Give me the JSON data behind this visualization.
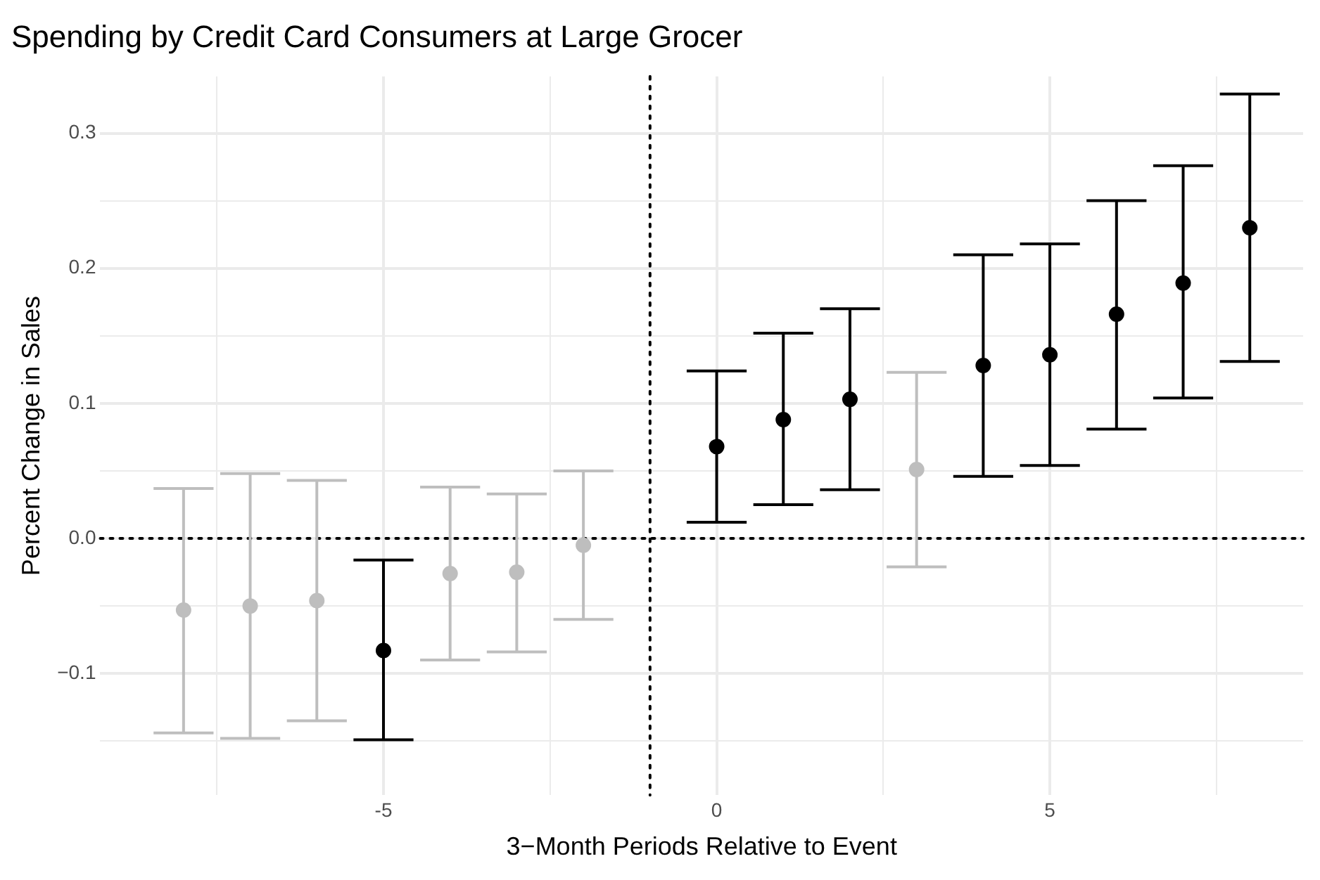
{
  "chart_data": {
    "type": "scatter",
    "title": "Spending by Credit Card Consumers at Large Grocer",
    "xlabel": "3−Month Periods Relative to Event",
    "ylabel": "Percent Change in Sales",
    "x": [
      -8,
      -7,
      -6,
      -5,
      -4,
      -3,
      -2,
      0,
      1,
      2,
      3,
      4,
      5,
      6,
      7,
      8
    ],
    "values": [
      -0.053,
      -0.05,
      -0.046,
      -0.083,
      -0.026,
      -0.025,
      -0.005,
      0.068,
      0.088,
      0.103,
      0.051,
      0.128,
      0.136,
      0.166,
      0.189,
      0.23
    ],
    "errors": [
      [
        -0.144,
        0.037
      ],
      [
        -0.148,
        0.048
      ],
      [
        -0.135,
        0.043
      ],
      [
        -0.149,
        -0.016
      ],
      [
        -0.09,
        0.038
      ],
      [
        -0.084,
        0.033
      ],
      [
        -0.06,
        0.05
      ],
      [
        0.012,
        0.124
      ],
      [
        0.025,
        0.152
      ],
      [
        0.036,
        0.17
      ],
      [
        -0.021,
        0.123
      ],
      [
        0.046,
        0.21
      ],
      [
        0.054,
        0.218
      ],
      [
        0.081,
        0.25
      ],
      [
        0.104,
        0.276
      ],
      [
        0.131,
        0.329
      ]
    ],
    "colors": [
      "#bebebe",
      "#bebebe",
      "#bebebe",
      "#000000",
      "#bebebe",
      "#bebebe",
      "#bebebe",
      "#000000",
      "#000000",
      "#000000",
      "#bebebe",
      "#000000",
      "#000000",
      "#000000",
      "#000000",
      "#000000"
    ],
    "marker": "circle",
    "xlim": [
      -9.25,
      8.8
    ],
    "ylim": [
      -0.19,
      0.342
    ],
    "xticks": [
      {
        "value": -7.5,
        "label": null
      },
      -5,
      {
        "value": -2.5,
        "label": null
      },
      0,
      {
        "value": 2.5,
        "label": null
      },
      5,
      {
        "value": 7.5,
        "label": null
      }
    ],
    "yticks": [
      {
        "value": -0.15,
        "label": null
      },
      {
        "value": -0.1,
        "label": "−0.1"
      },
      {
        "value": -0.05,
        "label": null
      },
      {
        "value": 0,
        "label": "0.0"
      },
      {
        "value": 0.05,
        "label": null
      },
      {
        "value": 0.1,
        "label": "0.1"
      },
      {
        "value": 0.15,
        "label": null
      },
      {
        "value": 0.2,
        "label": "0.2"
      },
      {
        "value": 0.25,
        "label": null
      },
      {
        "value": 0.3,
        "label": "0.3"
      }
    ],
    "grid": true,
    "legend": false,
    "ref_lines": [
      {
        "axis": "x",
        "value": -1,
        "color": "#000000",
        "line_style": "dotted"
      },
      {
        "axis": "y",
        "value": 0,
        "color": "#000000",
        "line_style": "dotted"
      }
    ]
  }
}
